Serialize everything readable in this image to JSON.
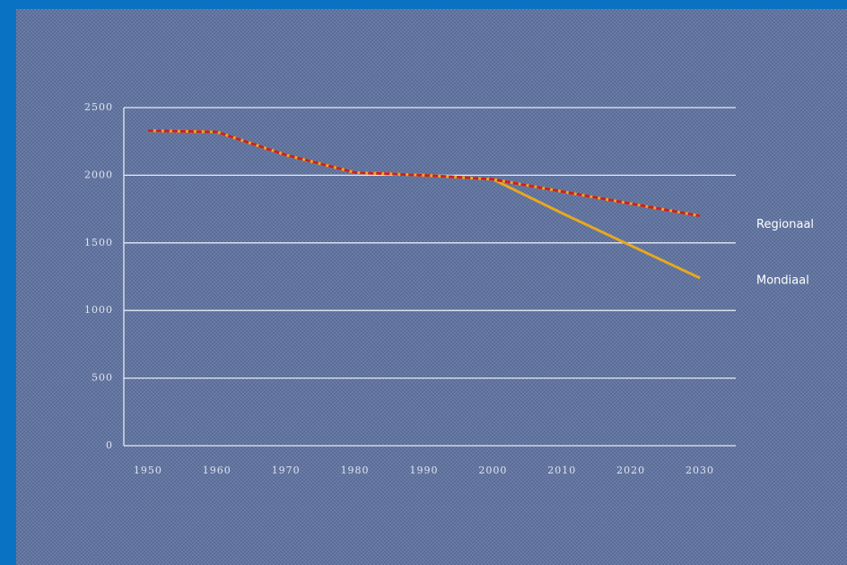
{
  "chart_data": {
    "type": "line",
    "x": [
      1950,
      1960,
      1970,
      1980,
      1990,
      2000,
      2010,
      2020,
      2030
    ],
    "series": [
      {
        "name": "Mondiaal",
        "color": "#e8a820",
        "values": [
          2330,
          2320,
          2150,
          2020,
          2000,
          1970,
          1720,
          1480,
          1240
        ]
      },
      {
        "name": "Regionaal",
        "color": "#c8202c",
        "values": [
          2330,
          2320,
          2150,
          2020,
          2000,
          1970,
          1880,
          1790,
          1700
        ]
      }
    ],
    "xlim": [
      1946.5,
      2035.2
    ],
    "xticks": [
      1950,
      1960,
      1970,
      1980,
      1990,
      2000,
      2010,
      2020,
      2030
    ],
    "ylim": [
      0,
      2500
    ],
    "yticks": [
      0,
      500,
      1000,
      1500,
      2000,
      2500
    ],
    "grid": true
  }
}
